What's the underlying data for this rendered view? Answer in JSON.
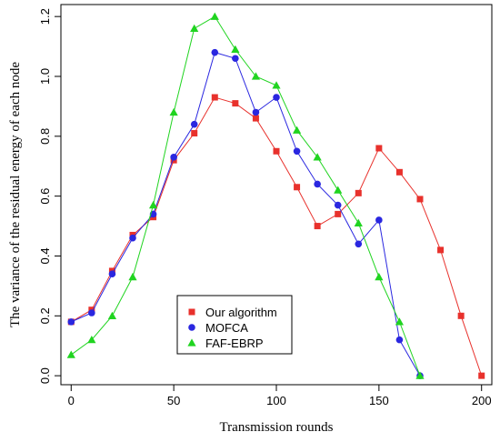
{
  "chart_data": {
    "type": "line",
    "title": "",
    "xlabel": "Transmission rounds",
    "ylabel": "The variance of the residual energy of each node",
    "xlim": [
      -5,
      205
    ],
    "ylim": [
      -0.03,
      1.24
    ],
    "xticks": [
      0,
      50,
      100,
      150,
      200
    ],
    "yticks": [
      0.0,
      0.2,
      0.4,
      0.6,
      0.8,
      1.0,
      1.2
    ],
    "xtick_labels": [
      "0",
      "50",
      "100",
      "150",
      "200"
    ],
    "ytick_labels": [
      "0.0",
      "0.2",
      "0.4",
      "0.6",
      "0.8",
      "1.0",
      "1.2"
    ],
    "grid": false,
    "legend_position": "bottom-center",
    "series": [
      {
        "name": "Our algorithm",
        "color": "#e8312c",
        "marker": "square",
        "x": [
          0,
          10,
          20,
          30,
          40,
          50,
          60,
          70,
          80,
          90,
          100,
          110,
          120,
          130,
          140,
          150,
          160,
          170,
          180,
          190,
          200
        ],
        "y": [
          0.18,
          0.22,
          0.35,
          0.47,
          0.53,
          0.72,
          0.81,
          0.93,
          0.91,
          0.86,
          0.75,
          0.63,
          0.5,
          0.54,
          0.61,
          0.76,
          0.68,
          0.59,
          0.42,
          0.2,
          0.0
        ]
      },
      {
        "name": "MOFCA",
        "color": "#2a27e0",
        "marker": "circle",
        "x": [
          0,
          10,
          20,
          30,
          40,
          50,
          60,
          70,
          80,
          90,
          100,
          110,
          120,
          130,
          140,
          150,
          160,
          170
        ],
        "y": [
          0.18,
          0.21,
          0.34,
          0.46,
          0.54,
          0.73,
          0.84,
          1.08,
          1.06,
          0.88,
          0.93,
          0.75,
          0.64,
          0.57,
          0.44,
          0.52,
          0.12,
          0.0
        ]
      },
      {
        "name": "FAF-EBRP",
        "color": "#20d420",
        "marker": "triangle",
        "x": [
          0,
          10,
          20,
          30,
          40,
          50,
          60,
          70,
          80,
          90,
          100,
          110,
          120,
          130,
          140,
          150,
          160,
          170
        ],
        "y": [
          0.07,
          0.12,
          0.2,
          0.33,
          0.57,
          0.88,
          1.16,
          1.2,
          1.09,
          1.0,
          0.97,
          0.82,
          0.73,
          0.62,
          0.51,
          0.33,
          0.18,
          0.0
        ]
      }
    ]
  }
}
